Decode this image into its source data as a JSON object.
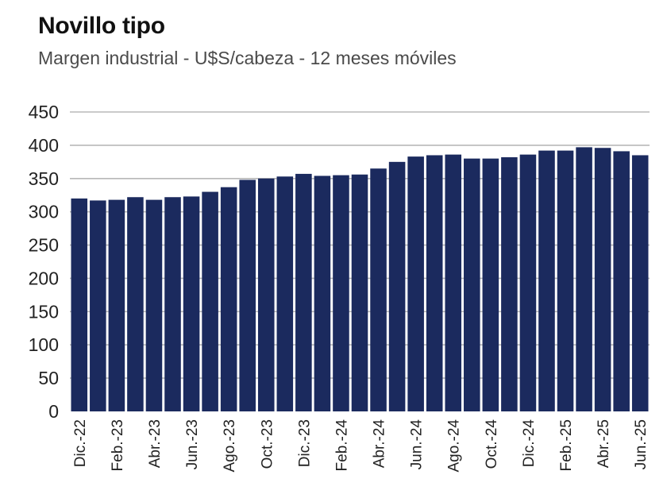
{
  "chart_data": {
    "type": "bar",
    "title": "Novillo tipo",
    "subtitle": "Margen industrial - U$S/cabeza - 12 meses móviles",
    "xlabel": "",
    "ylabel": "",
    "ylim": [
      0,
      450
    ],
    "yticks": [
      0,
      50,
      100,
      150,
      200,
      250,
      300,
      350,
      400,
      450
    ],
    "grid": true,
    "bar_color": "#1b2a5e",
    "grid_color": "#b8b8b8",
    "categories": [
      "Dic.-22",
      "Ene.-23",
      "Feb.-23",
      "Mar.-23",
      "Abr.-23",
      "May.-23",
      "Jun.-23",
      "Jul.-23",
      "Ago.-23",
      "Sep.-23",
      "Oct.-23",
      "Nov.-23",
      "Dic.-23",
      "Ene.-24",
      "Feb.-24",
      "Mar.-24",
      "Abr.-24",
      "May.-24",
      "Jun.-24",
      "Jul.-24",
      "Ago.-24",
      "Sep.-24",
      "Oct.-24",
      "Nov.-24",
      "Dic.-24",
      "Ene.-25",
      "Feb.-25",
      "Mar.-25",
      "Abr.-25",
      "May.-25",
      "Jun.-25"
    ],
    "tick_labels": [
      "Dic.-22",
      "",
      "Feb.-23",
      "",
      "Abr.-23",
      "",
      "Jun.-23",
      "",
      "Ago.-23",
      "",
      "Oct.-23",
      "",
      "Dic.-23",
      "",
      "Feb.-24",
      "",
      "Abr.-24",
      "",
      "Jun.-24",
      "",
      "Ago.-24",
      "",
      "Oct.-24",
      "",
      "Dic.-24",
      "",
      "Feb.-25",
      "",
      "Abr.-25",
      "",
      "Jun.-25"
    ],
    "values": [
      320,
      317,
      318,
      322,
      318,
      322,
      323,
      330,
      337,
      348,
      350,
      353,
      357,
      354,
      355,
      356,
      365,
      375,
      383,
      385,
      386,
      380,
      380,
      382,
      386,
      392,
      392,
      397,
      396,
      391,
      385
    ]
  }
}
